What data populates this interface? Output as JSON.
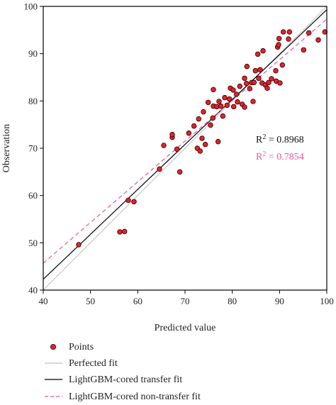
{
  "chart_data": {
    "type": "scatter",
    "title": "",
    "xlabel": "Predicted value",
    "ylabel": "Observation",
    "xlim": [
      40,
      100
    ],
    "ylim": [
      40,
      100
    ],
    "xticks": [
      "40",
      "50",
      "60",
      "70",
      "80",
      "90",
      "100"
    ],
    "yticks": [
      "40",
      "50",
      "60",
      "70",
      "80",
      "90",
      "100"
    ],
    "grid": false,
    "legend_position": "bottom",
    "series": [
      {
        "name": "Points",
        "kind": "scatter",
        "color": "#e8202a",
        "edge_color": "#3a0a0a",
        "points": [
          [
            47.5,
            49.6
          ],
          [
            56.2,
            52.3
          ],
          [
            57.2,
            52.4
          ],
          [
            58.0,
            59.0
          ],
          [
            59.2,
            58.7
          ],
          [
            64.6,
            65.6
          ],
          [
            65.5,
            70.6
          ],
          [
            67.3,
            72.3
          ],
          [
            67.3,
            72.9
          ],
          [
            68.3,
            69.8
          ],
          [
            68.9,
            65.0
          ],
          [
            70.8,
            73.2
          ],
          [
            71.9,
            74.7
          ],
          [
            72.6,
            70.0
          ],
          [
            73.2,
            69.4
          ],
          [
            72.9,
            76.2
          ],
          [
            73.6,
            72.1
          ],
          [
            73.9,
            77.7
          ],
          [
            74.3,
            70.8
          ],
          [
            74.9,
            79.7
          ],
          [
            75.4,
            74.9
          ],
          [
            75.9,
            76.4
          ],
          [
            76.0,
            78.9
          ],
          [
            76.0,
            82.4
          ],
          [
            76.7,
            78.8
          ],
          [
            77.0,
            71.4
          ],
          [
            77.2,
            79.9
          ],
          [
            77.6,
            78.9
          ],
          [
            78.0,
            76.8
          ],
          [
            78.4,
            80.7
          ],
          [
            78.9,
            79.1
          ],
          [
            79.4,
            80.4
          ],
          [
            79.6,
            82.7
          ],
          [
            80.2,
            82.3
          ],
          [
            80.3,
            78.8
          ],
          [
            80.9,
            81.4
          ],
          [
            81.1,
            79.8
          ],
          [
            81.6,
            83.1
          ],
          [
            82.1,
            79.3
          ],
          [
            82.6,
            78.7
          ],
          [
            82.6,
            84.8
          ],
          [
            83.0,
            83.7
          ],
          [
            83.1,
            87.3
          ],
          [
            83.7,
            82.6
          ],
          [
            84.1,
            83.9
          ],
          [
            84.6,
            83.9
          ],
          [
            84.4,
            79.9
          ],
          [
            84.9,
            86.4
          ],
          [
            85.4,
            89.9
          ],
          [
            85.6,
            84.8
          ],
          [
            85.9,
            86.6
          ],
          [
            86.3,
            83.8
          ],
          [
            86.5,
            90.6
          ],
          [
            87.0,
            83.4
          ],
          [
            87.4,
            82.7
          ],
          [
            87.7,
            83.9
          ],
          [
            88.3,
            84.7
          ],
          [
            89.2,
            86.4
          ],
          [
            89.3,
            84.2
          ],
          [
            89.6,
            91.4
          ],
          [
            89.8,
            91.9
          ],
          [
            89.9,
            93.2
          ],
          [
            90.1,
            83.8
          ],
          [
            90.6,
            87.6
          ],
          [
            90.8,
            94.6
          ],
          [
            91.9,
            93.1
          ],
          [
            92.1,
            94.6
          ],
          [
            95.1,
            90.8
          ],
          [
            96.2,
            94.4
          ],
          [
            98.2,
            92.9
          ],
          [
            99.6,
            94.6
          ]
        ]
      },
      {
        "name": "Perfected fit",
        "kind": "line",
        "color": "#c0c0c0",
        "dash": "solid",
        "x": [
          40,
          100
        ],
        "y": [
          40,
          100
        ]
      },
      {
        "name": "LightGBM-cored transfer fit",
        "kind": "line",
        "color": "#000000",
        "dash": "solid",
        "x": [
          40,
          100
        ],
        "y": [
          42.3,
          99.3
        ]
      },
      {
        "name": "LightGBM-cored non-transfer fit",
        "kind": "line",
        "color": "#e8559a",
        "dash": "dashed",
        "x": [
          40,
          100
        ],
        "y": [
          45.7,
          97.3
        ]
      }
    ],
    "annotations": [
      {
        "text_pre": "R",
        "sup": "2",
        "text_post": " = 0.8968",
        "color": "#111111"
      },
      {
        "text_pre": "R",
        "sup": "2",
        "text_post": " = 0.7854",
        "color": "#e8559a"
      }
    ]
  }
}
